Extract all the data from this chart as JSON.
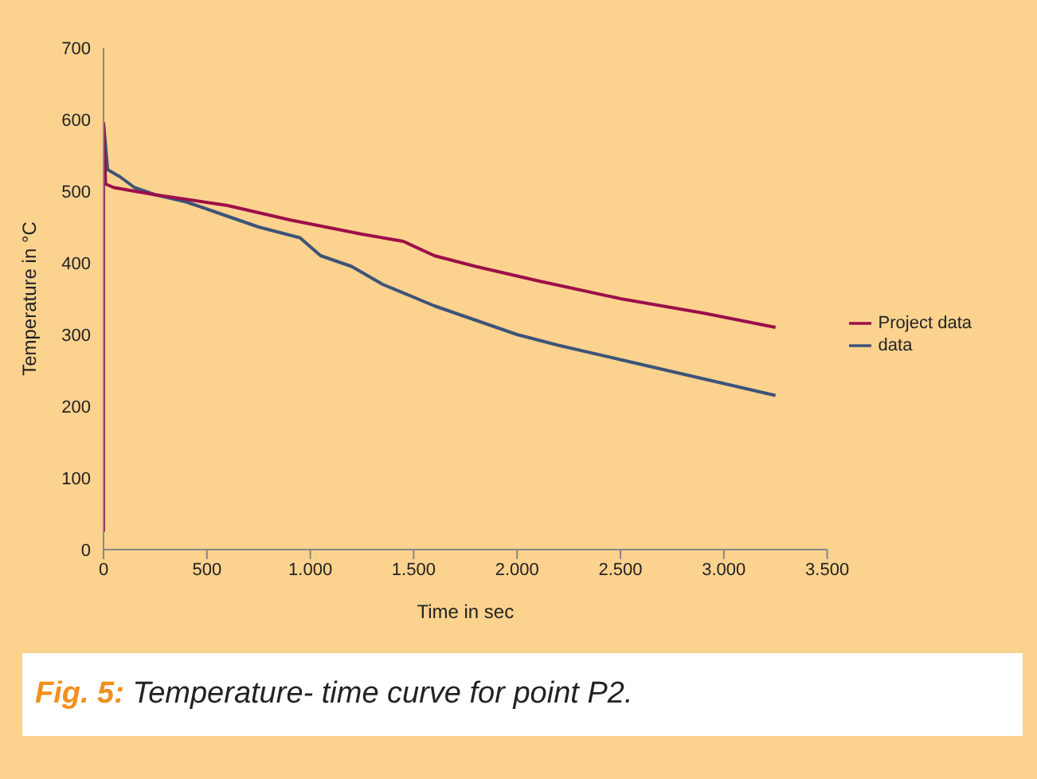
{
  "chart_data": {
    "type": "line",
    "xlabel": "Time in sec",
    "ylabel": "Temperature in °C",
    "xlim": [
      0,
      3500
    ],
    "xticks": [
      0,
      500,
      {
        "value": 1000,
        "label": "1.000"
      },
      {
        "value": 1500,
        "label": "1.500"
      },
      {
        "value": 2000,
        "label": "2.000"
      },
      {
        "value": 2500,
        "label": "2.500"
      },
      {
        "value": 3000,
        "label": "3.000"
      },
      {
        "value": 3500,
        "label": "3.500"
      }
    ],
    "ylim": [
      0,
      700
    ],
    "yticks": [
      0,
      100,
      200,
      300,
      400,
      500,
      600,
      700
    ],
    "series": [
      {
        "name": "data",
        "color": "#3d5478",
        "x": [
          0,
          20,
          80,
          150,
          250,
          400,
          550,
          750,
          950,
          1050,
          1200,
          1350,
          1600,
          1800,
          2000,
          2200,
          2500,
          2800,
          3100,
          3250
        ],
        "values": [
          595,
          530,
          520,
          505,
          495,
          485,
          470,
          450,
          435,
          410,
          395,
          370,
          340,
          320,
          300,
          285,
          265,
          245,
          225,
          215
        ]
      },
      {
        "name": "Project data",
        "color": "#9b0f4a",
        "x": [
          0,
          0,
          10,
          50,
          250,
          600,
          900,
          1250,
          1450,
          1600,
          1800,
          2100,
          2500,
          2900,
          3250
        ],
        "values": [
          25,
          595,
          510,
          505,
          495,
          480,
          460,
          440,
          430,
          410,
          395,
          375,
          350,
          330,
          310
        ]
      }
    ],
    "grid": false,
    "legend": "right",
    "marker": "none",
    "line_style": "solid",
    "annotations": [
      "Fig. 5: Temperature- time curve for point P2."
    ]
  }
}
